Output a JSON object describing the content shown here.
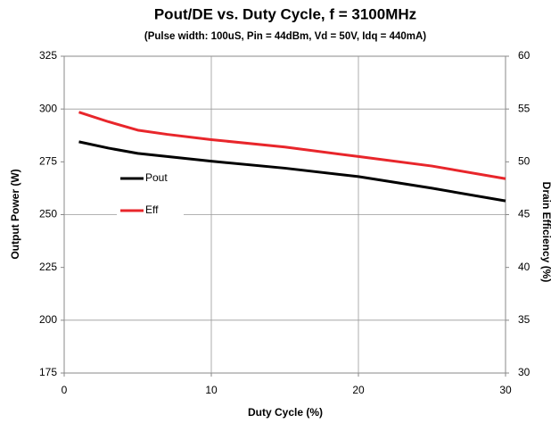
{
  "chart_data": {
    "type": "line",
    "title": "Pout/DE vs. Duty Cycle, f = 3100MHz",
    "subtitle": "(Pulse width: 100uS, Pin = 44dBm, Vd = 50V, Idq = 440mA)",
    "x_label": "Duty Cycle (%)",
    "y_label": "Output Power  (W)",
    "y2_label": "Drain Efficiency (%)",
    "x": [
      1,
      3,
      5,
      7,
      10,
      15,
      20,
      25,
      30
    ],
    "series": [
      {
        "name": "Pout",
        "color": "#000000",
        "values": [
          284.5,
          281.5,
          279,
          277.5,
          275.3,
          272,
          268,
          262.5,
          256.5
        ]
      },
      {
        "name": "Eff",
        "color": "#e8262b",
        "axis": "y2",
        "values": [
          54.7,
          53.8,
          53.0,
          52.6,
          52.1,
          51.4,
          50.5,
          49.6,
          48.4
        ]
      }
    ],
    "xlim": [
      0,
      30
    ],
    "xticks": [
      0,
      10,
      20,
      30
    ],
    "ylim": [
      175,
      325
    ],
    "yticks": [
      175,
      200,
      225,
      250,
      275,
      300,
      325
    ],
    "y2lim": [
      30,
      60
    ],
    "y2ticks": [
      30,
      35,
      40,
      45,
      50,
      55,
      60
    ],
    "grid": true,
    "legend": "left"
  }
}
